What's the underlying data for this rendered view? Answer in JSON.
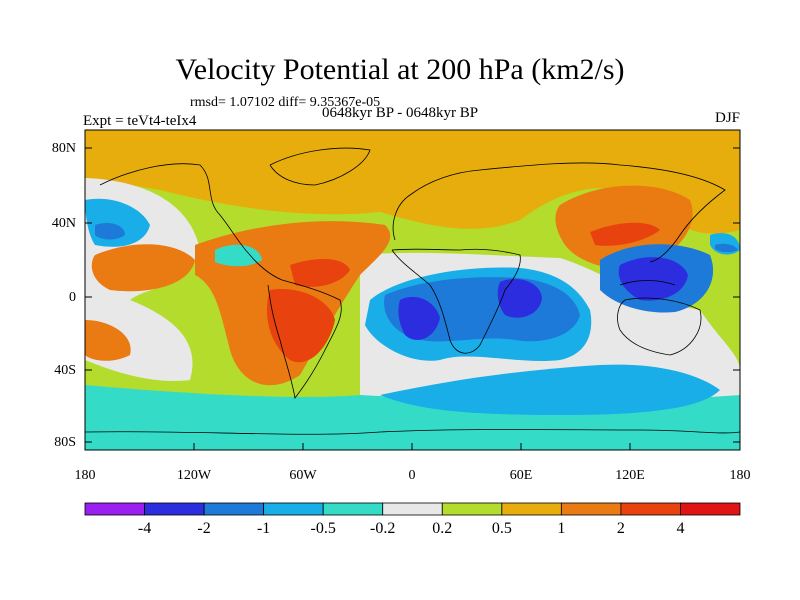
{
  "title": "Velocity Potential at 200 hPa (km2/s)",
  "stats": "rmsd= 1.07102 diff= 9.35367e-05",
  "experiment": "Expt = teVt4-teIx4",
  "period": "0648kyr BP - 0648kyr BP",
  "season": "DJF",
  "map": {
    "y_ticks": [
      "80N",
      "40N",
      "0",
      "40S",
      "80S"
    ],
    "x_ticks": [
      "180",
      "120W",
      "60W",
      "0",
      "60E",
      "120E",
      "180"
    ]
  },
  "colorbar": {
    "colors": [
      "#9a1ff0",
      "#2d2de0",
      "#1e7ad8",
      "#19aee8",
      "#34dcc8",
      "#e8e8e8",
      "#b4dc2c",
      "#e6ad0c",
      "#ea7a12",
      "#e8420e",
      "#e01414"
    ],
    "labels": [
      "-4",
      "-2",
      "-1",
      "-0.5",
      "-0.2",
      "0.2",
      "0.5",
      "1",
      "2",
      "4"
    ]
  }
}
